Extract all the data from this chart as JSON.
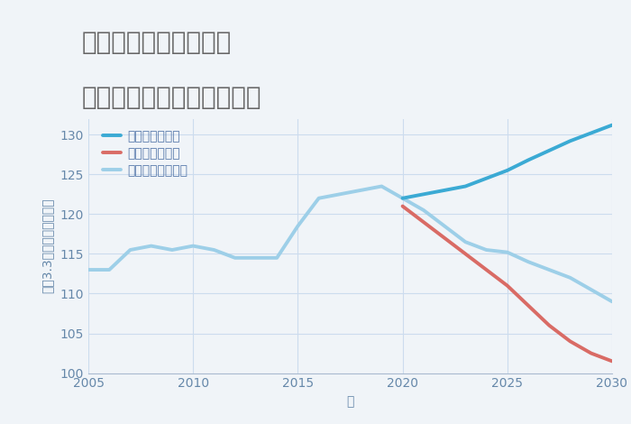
{
  "title_line1": "岐阜県関市洞戸大野の",
  "title_line2": "中古マンションの価格推移",
  "xlabel": "年",
  "ylabel": "坪（3.3㎡）単価（万円）",
  "background_color": "#f0f4f8",
  "plot_bg_color": "#f0f4f8",
  "ylim": [
    100,
    132
  ],
  "yticks": [
    100,
    105,
    110,
    115,
    120,
    125,
    130
  ],
  "xlim": [
    2005,
    2030
  ],
  "xticks": [
    2005,
    2010,
    2015,
    2020,
    2025,
    2030
  ],
  "good_scenario": {
    "x": [
      2020,
      2021,
      2022,
      2023,
      2024,
      2025,
      2026,
      2027,
      2028,
      2029,
      2030
    ],
    "y": [
      122.0,
      122.5,
      123.0,
      123.5,
      124.5,
      125.5,
      126.8,
      128.0,
      129.2,
      130.2,
      131.2
    ],
    "color": "#3baad4",
    "linewidth": 2.8,
    "label": "グッドシナリオ"
  },
  "bad_scenario": {
    "x": [
      2020,
      2021,
      2022,
      2023,
      2024,
      2025,
      2026,
      2027,
      2028,
      2029,
      2030
    ],
    "y": [
      121.0,
      119.0,
      117.0,
      115.0,
      113.0,
      111.0,
      108.5,
      106.0,
      104.0,
      102.5,
      101.5
    ],
    "color": "#d96b65",
    "linewidth": 2.8,
    "label": "バッドシナリオ"
  },
  "normal_scenario": {
    "x": [
      2005,
      2006,
      2007,
      2008,
      2009,
      2010,
      2011,
      2012,
      2013,
      2014,
      2015,
      2016,
      2017,
      2018,
      2019,
      2020,
      2021,
      2022,
      2023,
      2024,
      2025,
      2026,
      2027,
      2028,
      2029,
      2030
    ],
    "y": [
      113.0,
      113.0,
      115.5,
      116.0,
      115.5,
      116.0,
      115.5,
      114.5,
      114.5,
      114.5,
      118.5,
      122.0,
      122.5,
      123.0,
      123.5,
      122.0,
      120.5,
      118.5,
      116.5,
      115.5,
      115.2,
      114.0,
      113.0,
      112.0,
      110.5,
      109.0
    ],
    "color": "#9dcfe8",
    "linewidth": 2.8,
    "label": "ノーマルシナリオ"
  },
  "grid_color": "#ccdcee",
  "title_color": "#666666",
  "tick_color": "#6688aa",
  "legend_text_color": "#5577aa",
  "title_fontsize": 20,
  "axis_label_fontsize": 10,
  "tick_fontsize": 10,
  "legend_fontsize": 10
}
